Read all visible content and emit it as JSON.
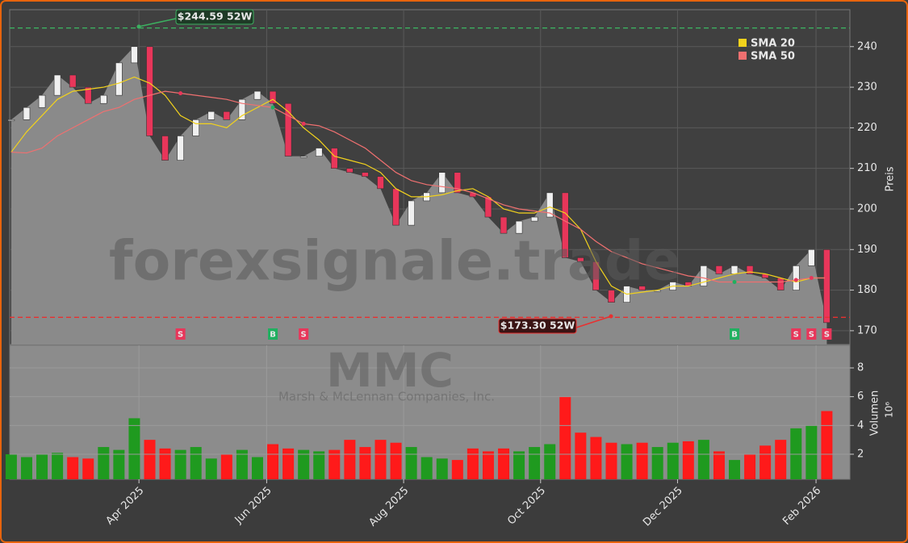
{
  "chart_data": {
    "type": "candlestick",
    "watermark": "forexsignale.trade",
    "ticker": "MMC",
    "company": "Marsh & McLennan Companies, Inc.",
    "y_label": "Preis",
    "volume_label": "Volumen",
    "volume_offset_label": "10⁶",
    "xlim": [
      -0.1,
      54.5
    ],
    "xticks": [
      {
        "value": 8.3,
        "label": "Apr 2025"
      },
      {
        "value": 16.6,
        "label": "Jun 2025"
      },
      {
        "value": 25.5,
        "label": "Aug 2025"
      },
      {
        "value": 34.4,
        "label": "Oct 2025"
      },
      {
        "value": 43.3,
        "label": "Dec 2025"
      },
      {
        "value": 52.3,
        "label": "Feb 2026"
      }
    ],
    "ylim": [
      166.6,
      249.1
    ],
    "yticks": [
      170,
      180,
      190,
      200,
      210,
      220,
      230,
      240
    ],
    "volume_ylim": [
      0.26,
      9.57
    ],
    "volume_yticks": [
      2,
      4,
      6,
      8
    ],
    "grid": true,
    "up_color": "#f0f0f0",
    "down_color": "#e8365a",
    "volume_up_color": "#1f9a1f",
    "volume_down_color": "#ff1a1a",
    "close": [
      222,
      225,
      228,
      233,
      230,
      226,
      228,
      236,
      240,
      218,
      212,
      218,
      222,
      224,
      222,
      227,
      229,
      226,
      213,
      213,
      215,
      210,
      209,
      208,
      205,
      196,
      202,
      204,
      209,
      204,
      203,
      198,
      194,
      197,
      198,
      204,
      188,
      187,
      180,
      177,
      181,
      180,
      180,
      182,
      181,
      186,
      184,
      186,
      184,
      183,
      180,
      186,
      190,
      172
    ],
    "series": [
      {
        "name": "SMA 20",
        "color": "#f2d21c",
        "values": [
          214,
          219,
          223,
          227,
          229,
          229.5,
          230,
          231,
          232.5,
          231,
          228,
          223,
          221,
          221,
          220,
          223,
          225,
          227,
          224,
          220,
          217,
          213,
          212,
          211,
          209,
          205,
          203,
          203,
          203.5,
          204.5,
          205,
          203,
          200,
          199,
          199,
          200.5,
          199,
          195,
          187,
          181,
          179,
          179.5,
          180,
          181,
          181,
          182,
          183,
          184,
          184.5,
          184,
          183,
          182,
          183,
          183
        ]
      },
      {
        "name": "SMA 50",
        "color": "#f07070",
        "values": [
          214,
          213.8,
          215,
          218,
          220,
          222,
          224,
          225,
          227,
          228,
          229,
          228.5,
          228,
          227.5,
          227,
          226,
          225.5,
          225,
          223,
          221,
          220.5,
          219,
          217,
          215,
          212,
          209,
          207,
          206,
          205.5,
          205,
          204,
          202.5,
          201,
          200,
          199.5,
          199,
          197,
          195,
          192,
          189.5,
          188,
          186.5,
          185.5,
          184.5,
          183.5,
          183,
          182,
          182,
          182,
          182,
          182,
          182.5,
          183,
          183
        ]
      }
    ],
    "volume": [
      2,
      1.8,
      2,
      2.1,
      1.8,
      1.7,
      2.5,
      2.3,
      4.5,
      3,
      2.4,
      2.3,
      2.5,
      1.7,
      2,
      2.3,
      1.8,
      2.7,
      2.4,
      2.3,
      2.2,
      2.3,
      3,
      2.5,
      3,
      2.8,
      2.5,
      1.8,
      1.7,
      1.6,
      2.4,
      2.2,
      2.4,
      2.2,
      2.5,
      2.7,
      6,
      3.5,
      3.2,
      2.8,
      2.7,
      2.8,
      2.5,
      2.8,
      2.9,
      3,
      2.2,
      1.6,
      2,
      2.6,
      3,
      3.8,
      4,
      5
    ],
    "high_52w": {
      "value": 244.59,
      "label": "$244.59 52W",
      "color": "#3cb060"
    },
    "low_52w": {
      "value": 173.3,
      "label": "$173.30 52W",
      "color": "#e83030"
    },
    "signals": [
      {
        "index": 11,
        "label": "S",
        "color": "#e8365a"
      },
      {
        "index": 17,
        "label": "B",
        "color": "#20b060"
      },
      {
        "index": 19,
        "label": "S",
        "color": "#e8365a"
      },
      {
        "index": 47,
        "label": "B",
        "color": "#20b060"
      },
      {
        "index": 51,
        "label": "S",
        "color": "#e8365a"
      },
      {
        "index": 52,
        "label": "S",
        "color": "#e8365a"
      },
      {
        "index": 53,
        "label": "S",
        "color": "#e8365a"
      }
    ]
  }
}
